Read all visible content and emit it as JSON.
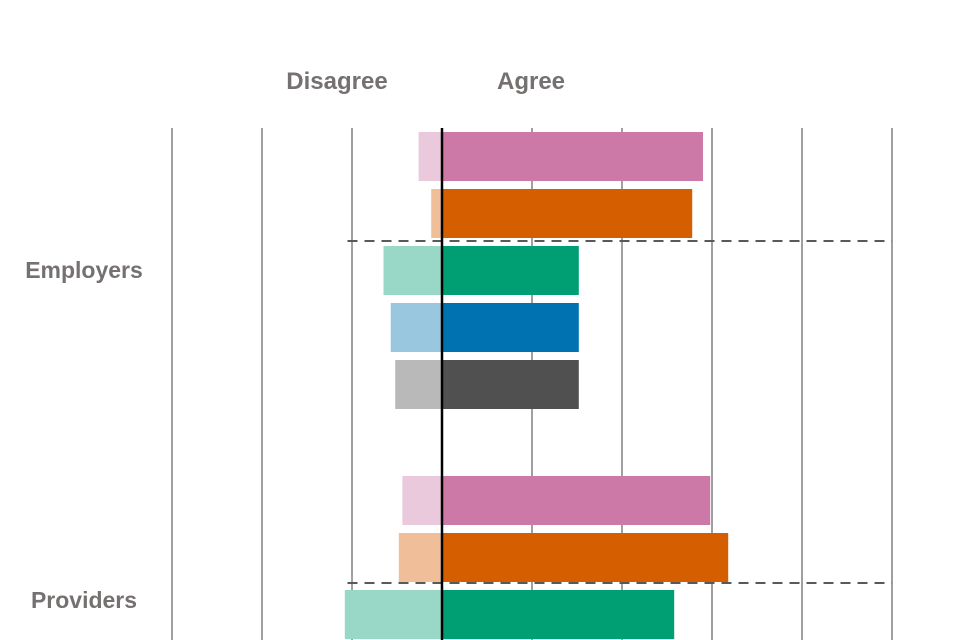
{
  "chart_data": {
    "type": "bar",
    "orientation": "horizontal",
    "stacked": "diverging",
    "headers": {
      "disagree": "Disagree",
      "agree": "Agree"
    },
    "groups": [
      {
        "name": "Employers",
        "bars": [
          {
            "agree": 0.29,
            "disagree": 0.026,
            "agree_color": "#CC79A7",
            "disagree_color": "#EAC9DC"
          },
          {
            "agree": 0.278,
            "disagree": 0.012,
            "agree_color": "#D55E00",
            "disagree_color": "#F0BE99"
          },
          {
            "agree": 0.152,
            "disagree": 0.065,
            "agree_color": "#009E73",
            "disagree_color": "#99D8C7"
          },
          {
            "agree": 0.152,
            "disagree": 0.057,
            "agree_color": "#0072B2",
            "disagree_color": "#99C7E0"
          },
          {
            "agree": 0.152,
            "disagree": 0.052,
            "agree_color": "#505050",
            "disagree_color": "#B9B9B9"
          }
        ]
      },
      {
        "name": "Providers",
        "bars": [
          {
            "agree": 0.298,
            "disagree": 0.044,
            "agree_color": "#CC79A7",
            "disagree_color": "#EAC9DC"
          },
          {
            "agree": 0.318,
            "disagree": 0.048,
            "agree_color": "#D55E00",
            "disagree_color": "#F0BE99"
          },
          {
            "agree": 0.258,
            "disagree": 0.108,
            "agree_color": "#009E73",
            "disagree_color": "#99D8C7"
          }
        ]
      }
    ],
    "xlim": [
      -0.3,
      0.5
    ],
    "grid": true
  }
}
